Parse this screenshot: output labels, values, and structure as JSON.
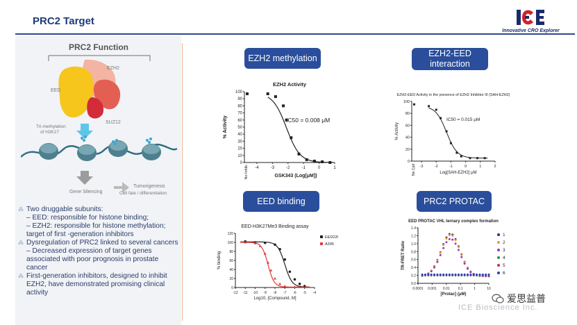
{
  "slide": {
    "title": "PRC2 Target"
  },
  "logo": {
    "mark": "ICE",
    "tagline": "Innovative CRO Explorer"
  },
  "left": {
    "heading": "PRC2 Function",
    "labels": {
      "ezh2": "EZH2",
      "eed": "EED",
      "suz12": "SUZ12",
      "trimethyl": "Tri-methylation",
      "h3k27": "of H3K27",
      "silencing": "Gene Silencing",
      "tumor": "Tumorigenesis",
      "fate": "Cell fate / differentiation"
    },
    "bullets": [
      {
        "text": "Two druggable subunits:",
        "subs": [
          "– EED: responsible for histone binding;",
          "– EZH2: responsible for histone methylation; target of first -generation inhibitors"
        ]
      },
      {
        "text": "Dysregulation of PRC2 linked to several cancers – Decreased expression of target genes associated with poor prognosis in prostate cancer",
        "subs": []
      },
      {
        "text": "First-generation inhibitors, designed to inhibit EZH2, have demonstrated promising clinical activity",
        "subs": []
      }
    ]
  },
  "pills": {
    "ezh2_methylation": "EZH2 methylation",
    "ezh2_eed": "EZH2-EED interaction",
    "eed_binding": "EED binding",
    "prc2_protac": "PRC2 PROTAC"
  },
  "chart_data": [
    {
      "type": "line",
      "title": "EZH2 Activity",
      "xlabel": "GSK343 (Log[μM])",
      "ylabel": "% Activity",
      "annotation": "IC50 = 0.008 μM",
      "xlim": [
        -4,
        1
      ],
      "ylim": [
        0,
        100
      ],
      "xticks": [
        "-4",
        "-3",
        "-2",
        "-1",
        "0",
        "1"
      ],
      "yticks": [
        "0",
        "10",
        "20",
        "30",
        "40",
        "50",
        "60",
        "70",
        "80",
        "90",
        "100"
      ],
      "xextra": "No Inhib",
      "x": [
        -3.3,
        -2.8,
        -2.3,
        -2.1,
        -1.8,
        -1.3,
        -0.8,
        -0.3,
        0.2,
        0.7
      ],
      "y": [
        97,
        93,
        80,
        60,
        35,
        12,
        4,
        2,
        1,
        0
      ]
    },
    {
      "type": "line",
      "title": "EZH2-EED Activity in the presence of EZH2 Inhibitor III (SAH-EZH2)",
      "xlabel": "Log[SAH-EZH2] μM",
      "ylabel": "% Activity",
      "annotation": "IC50 = 0.015 μM",
      "xlim": [
        -3,
        2
      ],
      "ylim": [
        0,
        100
      ],
      "xticks": [
        "-3",
        "-2",
        "-1",
        "0",
        "1",
        "2"
      ],
      "yticks": [
        "0",
        "20",
        "40",
        "60",
        "80",
        "100"
      ],
      "xextra": "No Cpd",
      "x": [
        -2.5,
        -2.0,
        -1.7,
        -1.3,
        -1.0,
        -0.6,
        -0.3,
        0.3,
        0.8,
        1.3
      ],
      "y": [
        92,
        86,
        72,
        50,
        30,
        14,
        8,
        5,
        5,
        5
      ]
    },
    {
      "type": "line",
      "title": "EED-H3K27Me3 Binding assay",
      "xlabel": "Log10, [Compound, M]",
      "ylabel": "% binding",
      "xlim": [
        -12,
        -4
      ],
      "ylim": [
        0,
        120
      ],
      "xticks": [
        "-12",
        "-11",
        "-10",
        "-9",
        "-8",
        "-7",
        "-6",
        "-5",
        "-4"
      ],
      "yticks": [
        "0",
        "20",
        "40",
        "60",
        "80",
        "100",
        "120"
      ],
      "series": [
        {
          "name": "EED226",
          "color": "#222222",
          "x": [
            -11,
            -10,
            -9,
            -8,
            -7.5,
            -7,
            -6.5,
            -6,
            -5.5,
            -5
          ],
          "y": [
            102,
            100,
            99,
            95,
            85,
            62,
            35,
            18,
            8,
            3
          ]
        },
        {
          "name": "A395",
          "color": "#e23b3b",
          "x": [
            -11,
            -10,
            -9.5,
            -9,
            -8.7,
            -8.4,
            -8,
            -7.5,
            -7,
            -6
          ],
          "y": [
            100,
            98,
            92,
            75,
            55,
            38,
            20,
            8,
            3,
            1
          ]
        }
      ]
    },
    {
      "type": "scatter",
      "title": "EED PROTAC VHL ternary complex formation",
      "xlabel": "[Protac] (μM)",
      "ylabel": "TR-FRET Ratio",
      "xlim": [
        0.0001,
        10
      ],
      "ylim": [
        0,
        1.4
      ],
      "xticks": [
        "0.0001",
        "0.001",
        "0.01",
        "0.1",
        "1",
        "10"
      ],
      "yticks": [
        "0.0",
        "0.2",
        "0.4",
        "0.6",
        "0.8",
        "1.0",
        "1.2",
        "1.4"
      ],
      "series": [
        {
          "name": "1",
          "color": "#3d2a8c"
        },
        {
          "name": "2",
          "color": "#e8a325"
        },
        {
          "name": "3",
          "color": "#9b39b0"
        },
        {
          "name": "4",
          "color": "#2d8f4e"
        },
        {
          "name": "5",
          "color": "#c03060"
        },
        {
          "name": "6",
          "color": "#2a3fb5"
        }
      ]
    }
  ],
  "footer": {
    "watermark": "ICE Bioscience Inc.",
    "wechat": "爱思益普"
  }
}
